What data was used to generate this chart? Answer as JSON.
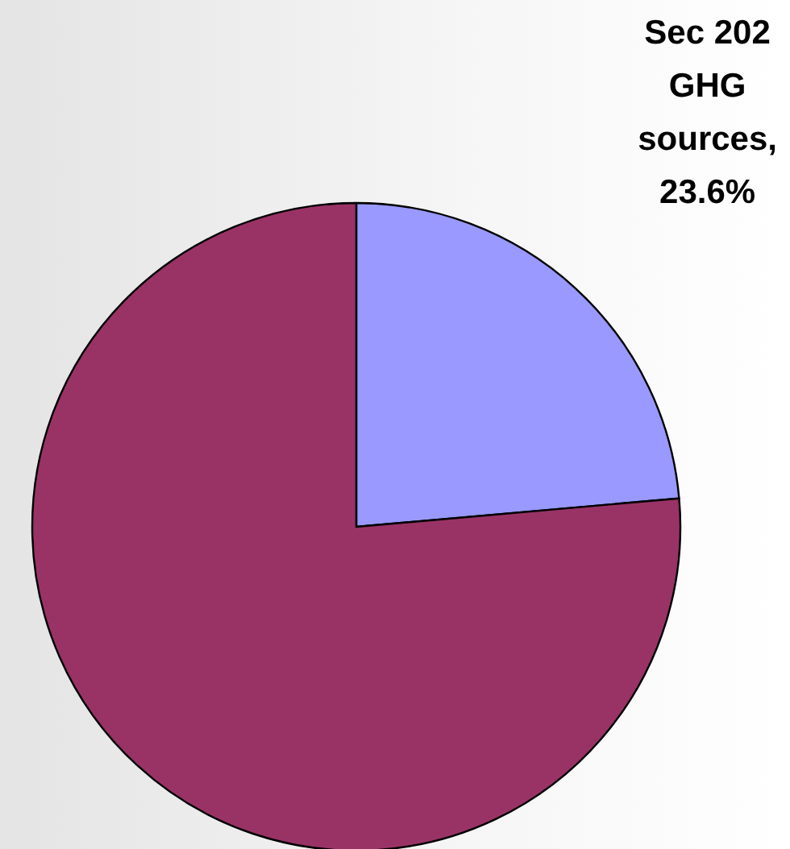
{
  "chart_data": {
    "type": "pie",
    "categories": [
      null,
      null
    ],
    "values": [
      23.6,
      76.4
    ],
    "colors": [
      "#9999ff",
      "#993366"
    ],
    "value_labels": [
      "Sec 202 GHG sources, 23.6%",
      null
    ]
  }
}
